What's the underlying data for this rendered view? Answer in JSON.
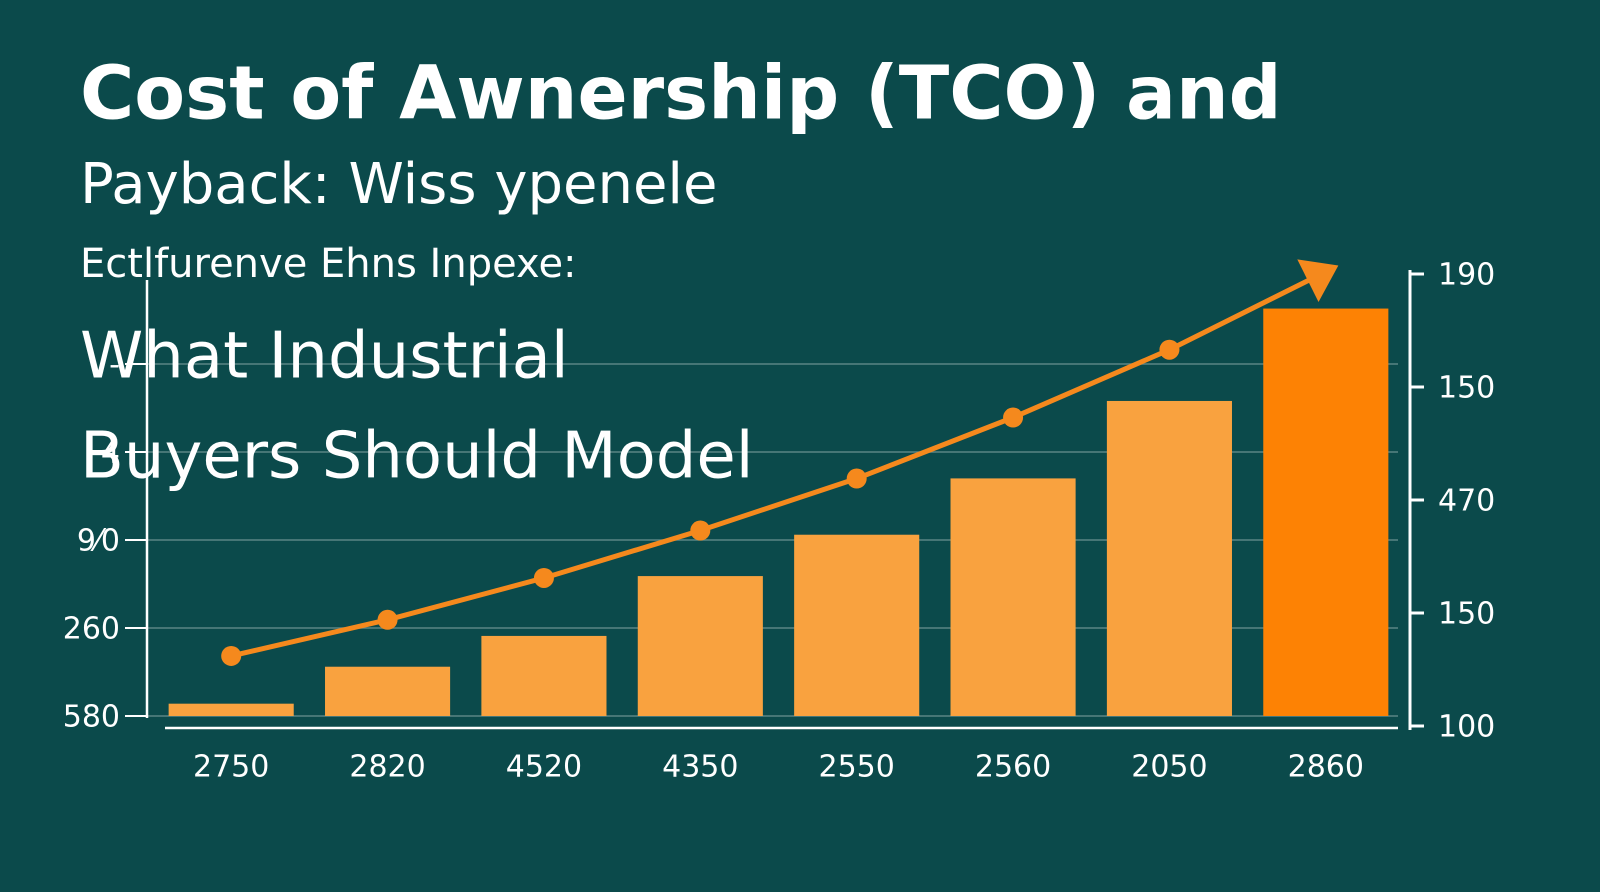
{
  "chart_data": {
    "type": "bar",
    "title": "Cost of Awnership (TCO) and",
    "subtitle": "Payback: Wiss ypenele",
    "tagline": "Ectlfurenve Ehns Inpexe:",
    "headline": [
      "What Industrial",
      "Buyers Should Model"
    ],
    "categories": [
      "2750",
      "2820",
      "4520",
      "4350",
      "2550",
      "2560",
      "2050",
      "2860"
    ],
    "values": [
      0.14,
      0.56,
      0.91,
      1.59,
      2.06,
      2.7,
      3.58,
      4.63
    ],
    "colors": [
      "#f9a23f",
      "#f9a23f",
      "#f9a23f",
      "#f9a23f",
      "#f9a23f",
      "#f9a23f",
      "#f9a23f",
      "#fd8204"
    ],
    "ylim": [
      0,
      5
    ],
    "yticks": [
      {
        "value": 0,
        "label": "580"
      },
      {
        "value": 1,
        "label": "260"
      },
      {
        "value": 2,
        "label": "9⁄0"
      },
      {
        "value": 3,
        "label": "4"
      },
      {
        "value": 4,
        "label": "-"
      }
    ],
    "grid": true,
    "line": {
      "color": "#f5891d",
      "axis": "y2",
      "values": [
        0.62,
        0.94,
        1.31,
        1.73,
        2.19,
        2.73,
        3.33,
        4.02
      ]
    },
    "y2lim": [
      0,
      4
    ],
    "y2ticks": [
      {
        "value": 0,
        "label": "100"
      },
      {
        "value": 1,
        "label": "150"
      },
      {
        "value": 2,
        "label": "470"
      },
      {
        "value": 3,
        "label": "150"
      },
      {
        "value": 4,
        "label": "190"
      }
    ]
  }
}
